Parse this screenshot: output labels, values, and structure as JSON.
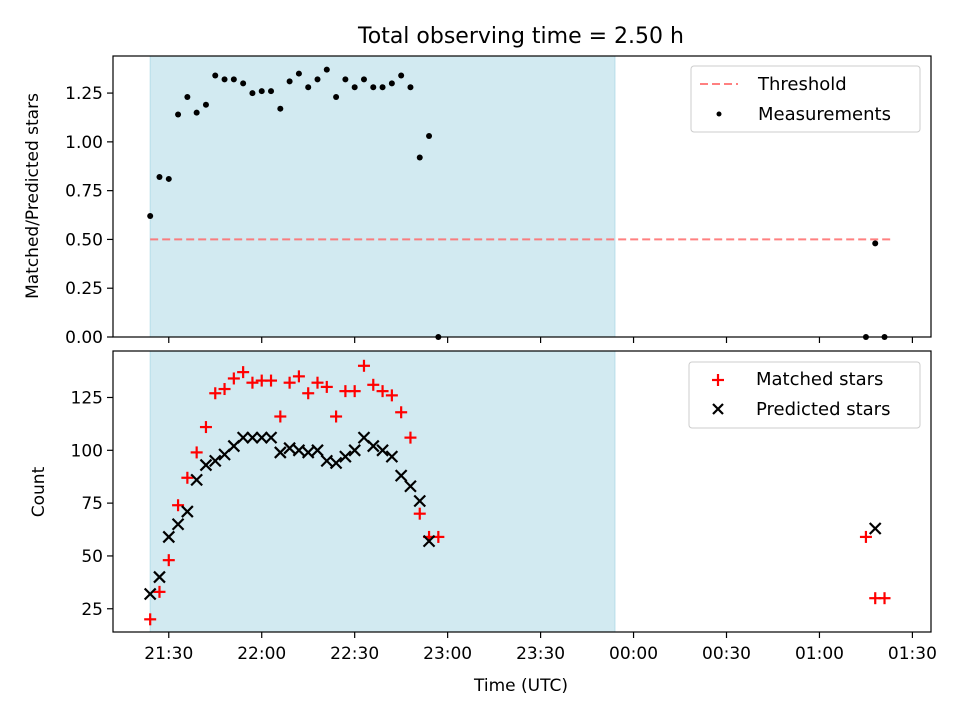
{
  "title": "Total observing time = 2.50 h",
  "chart_data": [
    {
      "type": "scatter",
      "ylabel": "Matched/Predicted stars",
      "xlabel": "",
      "xlim": [
        "21:12",
        "01:36"
      ],
      "ylim": [
        0,
        1.44
      ],
      "yticks": [
        0.0,
        0.25,
        0.5,
        0.75,
        1.0,
        1.25
      ],
      "ytick_labels": [
        "0.00",
        "0.25",
        "0.50",
        "0.75",
        "1.00",
        "1.25"
      ],
      "shaded_interval": [
        "21:24",
        "23:54"
      ],
      "shade_color": "#add8e6",
      "legend_position": "upper right",
      "threshold": {
        "name": "Threshold",
        "y": 0.5,
        "x_range": [
          "21:24",
          "01:24"
        ],
        "color": "#ff6b6b",
        "style": "dashed"
      },
      "series": [
        {
          "name": "Measurements",
          "color": "#000000",
          "marker": "dot",
          "points": [
            [
              "21:24",
              0.62
            ],
            [
              "21:27",
              0.82
            ],
            [
              "21:30",
              0.81
            ],
            [
              "21:33",
              1.14
            ],
            [
              "21:36",
              1.23
            ],
            [
              "21:39",
              1.15
            ],
            [
              "21:42",
              1.19
            ],
            [
              "21:45",
              1.34
            ],
            [
              "21:48",
              1.32
            ],
            [
              "21:51",
              1.32
            ],
            [
              "21:54",
              1.3
            ],
            [
              "21:57",
              1.25
            ],
            [
              "22:00",
              1.26
            ],
            [
              "22:03",
              1.26
            ],
            [
              "22:06",
              1.17
            ],
            [
              "22:09",
              1.31
            ],
            [
              "22:12",
              1.35
            ],
            [
              "22:15",
              1.28
            ],
            [
              "22:18",
              1.32
            ],
            [
              "22:21",
              1.37
            ],
            [
              "22:24",
              1.23
            ],
            [
              "22:27",
              1.32
            ],
            [
              "22:30",
              1.28
            ],
            [
              "22:33",
              1.32
            ],
            [
              "22:36",
              1.28
            ],
            [
              "22:39",
              1.28
            ],
            [
              "22:42",
              1.3
            ],
            [
              "22:45",
              1.34
            ],
            [
              "22:48",
              1.28
            ],
            [
              "22:51",
              0.92
            ],
            [
              "22:54",
              1.03
            ],
            [
              "22:57",
              0.0
            ],
            [
              "01:15",
              0.0
            ],
            [
              "01:18",
              0.48
            ],
            [
              "01:21",
              0.0
            ]
          ]
        }
      ]
    },
    {
      "type": "scatter",
      "ylabel": "Count",
      "xlabel": "Time (UTC)",
      "xlim": [
        "21:12",
        "01:36"
      ],
      "ylim": [
        14,
        147
      ],
      "yticks": [
        25,
        50,
        75,
        100,
        125
      ],
      "ytick_labels": [
        "25",
        "50",
        "75",
        "100",
        "125"
      ],
      "xticks": [
        "21:30",
        "22:00",
        "22:30",
        "23:00",
        "23:30",
        "00:00",
        "00:30",
        "01:00",
        "01:30"
      ],
      "xtick_labels": [
        "21:30",
        "22:00",
        "22:30",
        "23:00",
        "23:30",
        "00:00",
        "00:30",
        "01:00",
        "01:30"
      ],
      "shaded_interval": [
        "21:24",
        "23:54"
      ],
      "shade_color": "#add8e6",
      "legend_position": "upper right",
      "series": [
        {
          "name": "Matched stars",
          "color": "#ff0000",
          "marker": "plus",
          "points": [
            [
              "21:24",
              20
            ],
            [
              "21:27",
              33
            ],
            [
              "21:30",
              48
            ],
            [
              "21:33",
              74
            ],
            [
              "21:36",
              87
            ],
            [
              "21:39",
              99
            ],
            [
              "21:42",
              111
            ],
            [
              "21:45",
              127
            ],
            [
              "21:48",
              129
            ],
            [
              "21:51",
              134
            ],
            [
              "21:54",
              137
            ],
            [
              "21:57",
              132
            ],
            [
              "22:00",
              133
            ],
            [
              "22:03",
              133
            ],
            [
              "22:06",
              116
            ],
            [
              "22:09",
              132
            ],
            [
              "22:12",
              135
            ],
            [
              "22:15",
              127
            ],
            [
              "22:18",
              132
            ],
            [
              "22:21",
              130
            ],
            [
              "22:24",
              116
            ],
            [
              "22:27",
              128
            ],
            [
              "22:30",
              128
            ],
            [
              "22:33",
              140
            ],
            [
              "22:36",
              131
            ],
            [
              "22:39",
              128
            ],
            [
              "22:42",
              126
            ],
            [
              "22:45",
              118
            ],
            [
              "22:48",
              106
            ],
            [
              "22:51",
              70
            ],
            [
              "22:54",
              59
            ],
            [
              "22:57",
              59
            ],
            [
              "01:15",
              59
            ],
            [
              "01:18",
              30
            ],
            [
              "01:21",
              30
            ]
          ]
        },
        {
          "name": "Predicted stars",
          "color": "#000000",
          "marker": "x",
          "points": [
            [
              "21:24",
              32
            ],
            [
              "21:27",
              40
            ],
            [
              "21:30",
              59
            ],
            [
              "21:33",
              65
            ],
            [
              "21:36",
              71
            ],
            [
              "21:39",
              86
            ],
            [
              "21:42",
              93
            ],
            [
              "21:45",
              95
            ],
            [
              "21:48",
              98
            ],
            [
              "21:51",
              102
            ],
            [
              "21:54",
              106
            ],
            [
              "21:57",
              106
            ],
            [
              "22:00",
              106
            ],
            [
              "22:03",
              106
            ],
            [
              "22:06",
              99
            ],
            [
              "22:09",
              101
            ],
            [
              "22:12",
              100
            ],
            [
              "22:15",
              99
            ],
            [
              "22:18",
              100
            ],
            [
              "22:21",
              95
            ],
            [
              "22:24",
              94
            ],
            [
              "22:27",
              97
            ],
            [
              "22:30",
              100
            ],
            [
              "22:33",
              106
            ],
            [
              "22:36",
              102
            ],
            [
              "22:39",
              100
            ],
            [
              "22:42",
              97
            ],
            [
              "22:45",
              88
            ],
            [
              "22:48",
              83
            ],
            [
              "22:51",
              76
            ],
            [
              "22:54",
              57
            ],
            [
              "01:18",
              63
            ]
          ]
        }
      ]
    }
  ]
}
